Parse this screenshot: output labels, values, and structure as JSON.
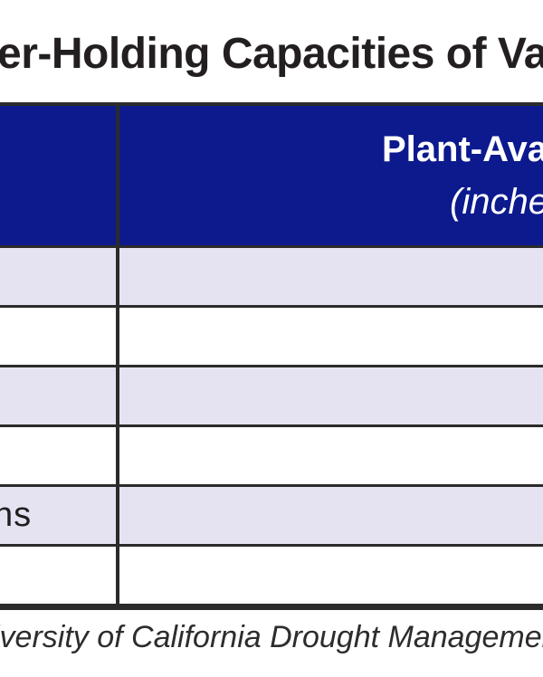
{
  "title": {
    "visible_text": "er-Holding Capacities of Va"
  },
  "table": {
    "header": {
      "col1_label": "",
      "col2_line1_visible": "Plant-Ava",
      "col2_line2_visible": "(inche"
    },
    "rows": [
      {
        "label": "",
        "value": ""
      },
      {
        "label": "",
        "value": ""
      },
      {
        "label": "",
        "value": ""
      },
      {
        "label": "",
        "value": ""
      },
      {
        "label": "ns",
        "value": ""
      },
      {
        "label": "",
        "value": ""
      }
    ]
  },
  "footer": {
    "visible_text": "iversity of California Drought Managemen"
  },
  "colors": {
    "header_bg": "#0c1a8e",
    "header_text": "#ffffff",
    "row_alt": "#e5e3f1",
    "border": "#2b2b2b",
    "title_text": "#231f20",
    "body_text": "#1f1d1e",
    "footer_text": "#2e2c2d"
  }
}
